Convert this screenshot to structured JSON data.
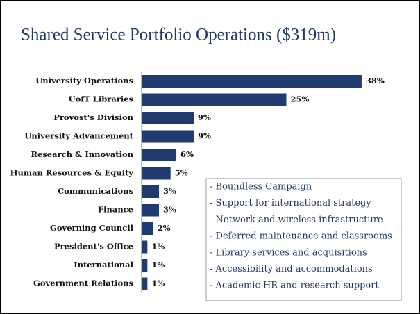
{
  "chart_data": {
    "type": "bar",
    "orientation": "horizontal",
    "title": "Shared Service Portfolio Operations ($319m)",
    "categories": [
      "University Operations",
      "UofT Libraries",
      "Provost's Division",
      "University Advancement",
      "Research & Innovation",
      "Human Resources & Equity",
      "Communications",
      "Finance",
      "Governing Council",
      "President's Office",
      "International",
      "Government Relations"
    ],
    "values": [
      38,
      25,
      9,
      9,
      6,
      5,
      3,
      3,
      2,
      1,
      1,
      1
    ],
    "value_labels": [
      "38%",
      "25%",
      "9%",
      "9%",
      "6%",
      "5%",
      "3%",
      "3%",
      "2%",
      "1%",
      "1%",
      "1%"
    ],
    "color": "#1f3b70",
    "annotations": [
      "- Boundless Campaign",
      "- Support for international strategy",
      "- Network and wireless infrastructure",
      "- Deferred maintenance and classrooms",
      "- Library services and acquisitions",
      "- Accessibility and accommodations",
      "- Academic HR and research support"
    ]
  }
}
